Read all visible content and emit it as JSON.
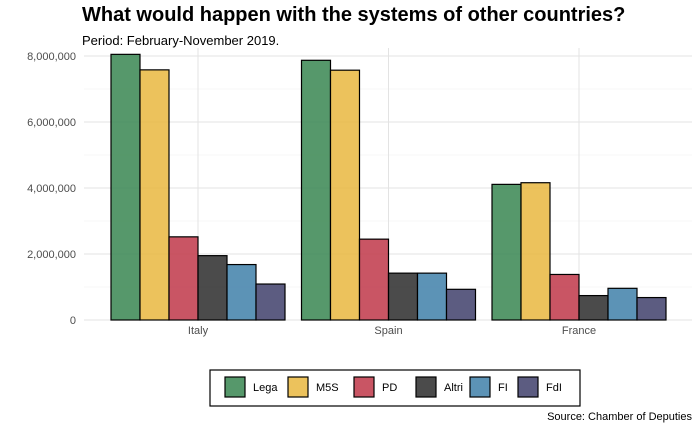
{
  "chart_data": {
    "type": "bar",
    "title": "What would happen with the systems of other countries?",
    "subtitle": "Period: February-November 2019.",
    "caption": "Source: Chamber of Deputies",
    "xlabel": "",
    "ylabel": "",
    "categories": [
      "Italy",
      "Spain",
      "France"
    ],
    "ylim": [
      0,
      8000000
    ],
    "yticks": [
      0,
      2000000,
      4000000,
      6000000,
      8000000
    ],
    "ytick_labels": [
      "0",
      "2,000,000",
      "4,000,000",
      "6,000,000",
      "8,000,000"
    ],
    "grid": true,
    "legend_position": "bottom",
    "series": [
      {
        "name": "Lega",
        "color": "#3f8a56",
        "values": [
          8050000,
          7870000,
          4110000
        ]
      },
      {
        "name": "M5S",
        "color": "#e9ba46",
        "values": [
          7580000,
          7570000,
          4160000
        ]
      },
      {
        "name": "PD",
        "color": "#c13e4e",
        "values": [
          2520000,
          2450000,
          1380000
        ]
      },
      {
        "name": "Altri",
        "color": "#323232",
        "values": [
          1950000,
          1420000,
          740000
        ]
      },
      {
        "name": "FI",
        "color": "#4584ac",
        "values": [
          1680000,
          1420000,
          960000
        ]
      },
      {
        "name": "FdI",
        "color": "#46456f",
        "values": [
          1090000,
          930000,
          680000
        ]
      }
    ]
  }
}
